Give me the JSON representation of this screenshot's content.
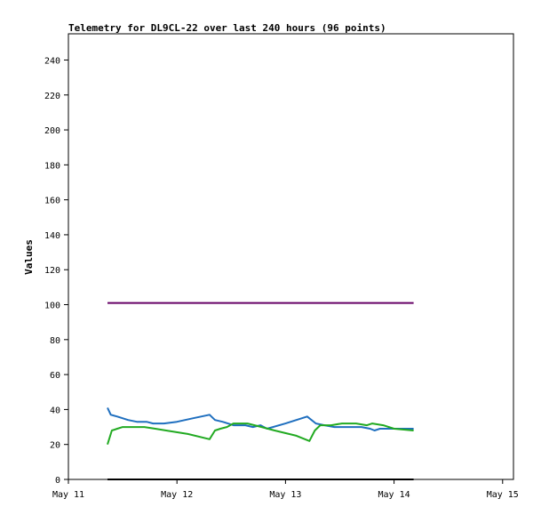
{
  "chart_data": {
    "type": "line",
    "title": "Telemetry for DL9CL-22 over last 240 hours (96 points)",
    "xlabel": "",
    "ylabel": "Values",
    "ylim": [
      0,
      255
    ],
    "y_ticks": [
      0,
      20,
      40,
      60,
      80,
      100,
      120,
      140,
      160,
      180,
      200,
      220,
      240
    ],
    "x_unit": "day",
    "xlim": [
      11,
      15.1
    ],
    "x_ticks": [
      {
        "value": 11,
        "label": "May 11"
      },
      {
        "value": 12,
        "label": "May 12"
      },
      {
        "value": 13,
        "label": "May 13"
      },
      {
        "value": 14,
        "label": "May 14"
      },
      {
        "value": 15,
        "label": "May 15"
      }
    ],
    "grid": false,
    "legend": "none",
    "series": [
      {
        "color": "#660066",
        "points": [
          [
            11.36,
            101
          ],
          [
            14.18,
            101
          ]
        ]
      },
      {
        "color": "#1f6fbf",
        "points": [
          [
            11.36,
            41
          ],
          [
            11.39,
            37
          ],
          [
            11.45,
            36
          ],
          [
            11.55,
            34
          ],
          [
            11.63,
            33
          ],
          [
            11.72,
            33
          ],
          [
            11.78,
            32
          ],
          [
            11.88,
            32
          ],
          [
            12.0,
            33
          ],
          [
            12.15,
            35
          ],
          [
            12.3,
            37
          ],
          [
            12.35,
            34
          ],
          [
            12.42,
            33
          ],
          [
            12.47,
            32
          ],
          [
            12.52,
            31
          ],
          [
            12.63,
            31
          ],
          [
            12.7,
            30
          ],
          [
            12.77,
            31
          ],
          [
            12.83,
            29
          ],
          [
            13.0,
            32
          ],
          [
            13.2,
            36
          ],
          [
            13.28,
            32
          ],
          [
            13.36,
            31
          ],
          [
            13.45,
            30
          ],
          [
            13.6,
            30
          ],
          [
            13.7,
            30
          ],
          [
            13.78,
            29
          ],
          [
            13.82,
            28
          ],
          [
            13.87,
            29
          ],
          [
            14.0,
            29
          ],
          [
            14.1,
            29
          ],
          [
            14.18,
            29
          ]
        ]
      },
      {
        "color": "#22aa22",
        "points": [
          [
            11.36,
            20
          ],
          [
            11.4,
            28
          ],
          [
            11.45,
            29
          ],
          [
            11.5,
            30
          ],
          [
            11.7,
            30
          ],
          [
            11.8,
            29
          ],
          [
            11.9,
            28
          ],
          [
            12.1,
            26
          ],
          [
            12.3,
            23
          ],
          [
            12.35,
            28
          ],
          [
            12.4,
            29
          ],
          [
            12.46,
            30
          ],
          [
            12.52,
            32
          ],
          [
            12.65,
            32
          ],
          [
            12.78,
            30
          ],
          [
            12.9,
            28
          ],
          [
            13.1,
            25
          ],
          [
            13.22,
            22
          ],
          [
            13.27,
            28
          ],
          [
            13.32,
            31
          ],
          [
            13.42,
            31
          ],
          [
            13.52,
            32
          ],
          [
            13.65,
            32
          ],
          [
            13.75,
            31
          ],
          [
            13.8,
            32
          ],
          [
            13.9,
            31
          ],
          [
            14.0,
            29
          ],
          [
            14.18,
            28
          ]
        ]
      },
      {
        "color": "#000000",
        "points": [
          [
            11.36,
            0
          ],
          [
            14.18,
            0
          ]
        ]
      }
    ]
  }
}
